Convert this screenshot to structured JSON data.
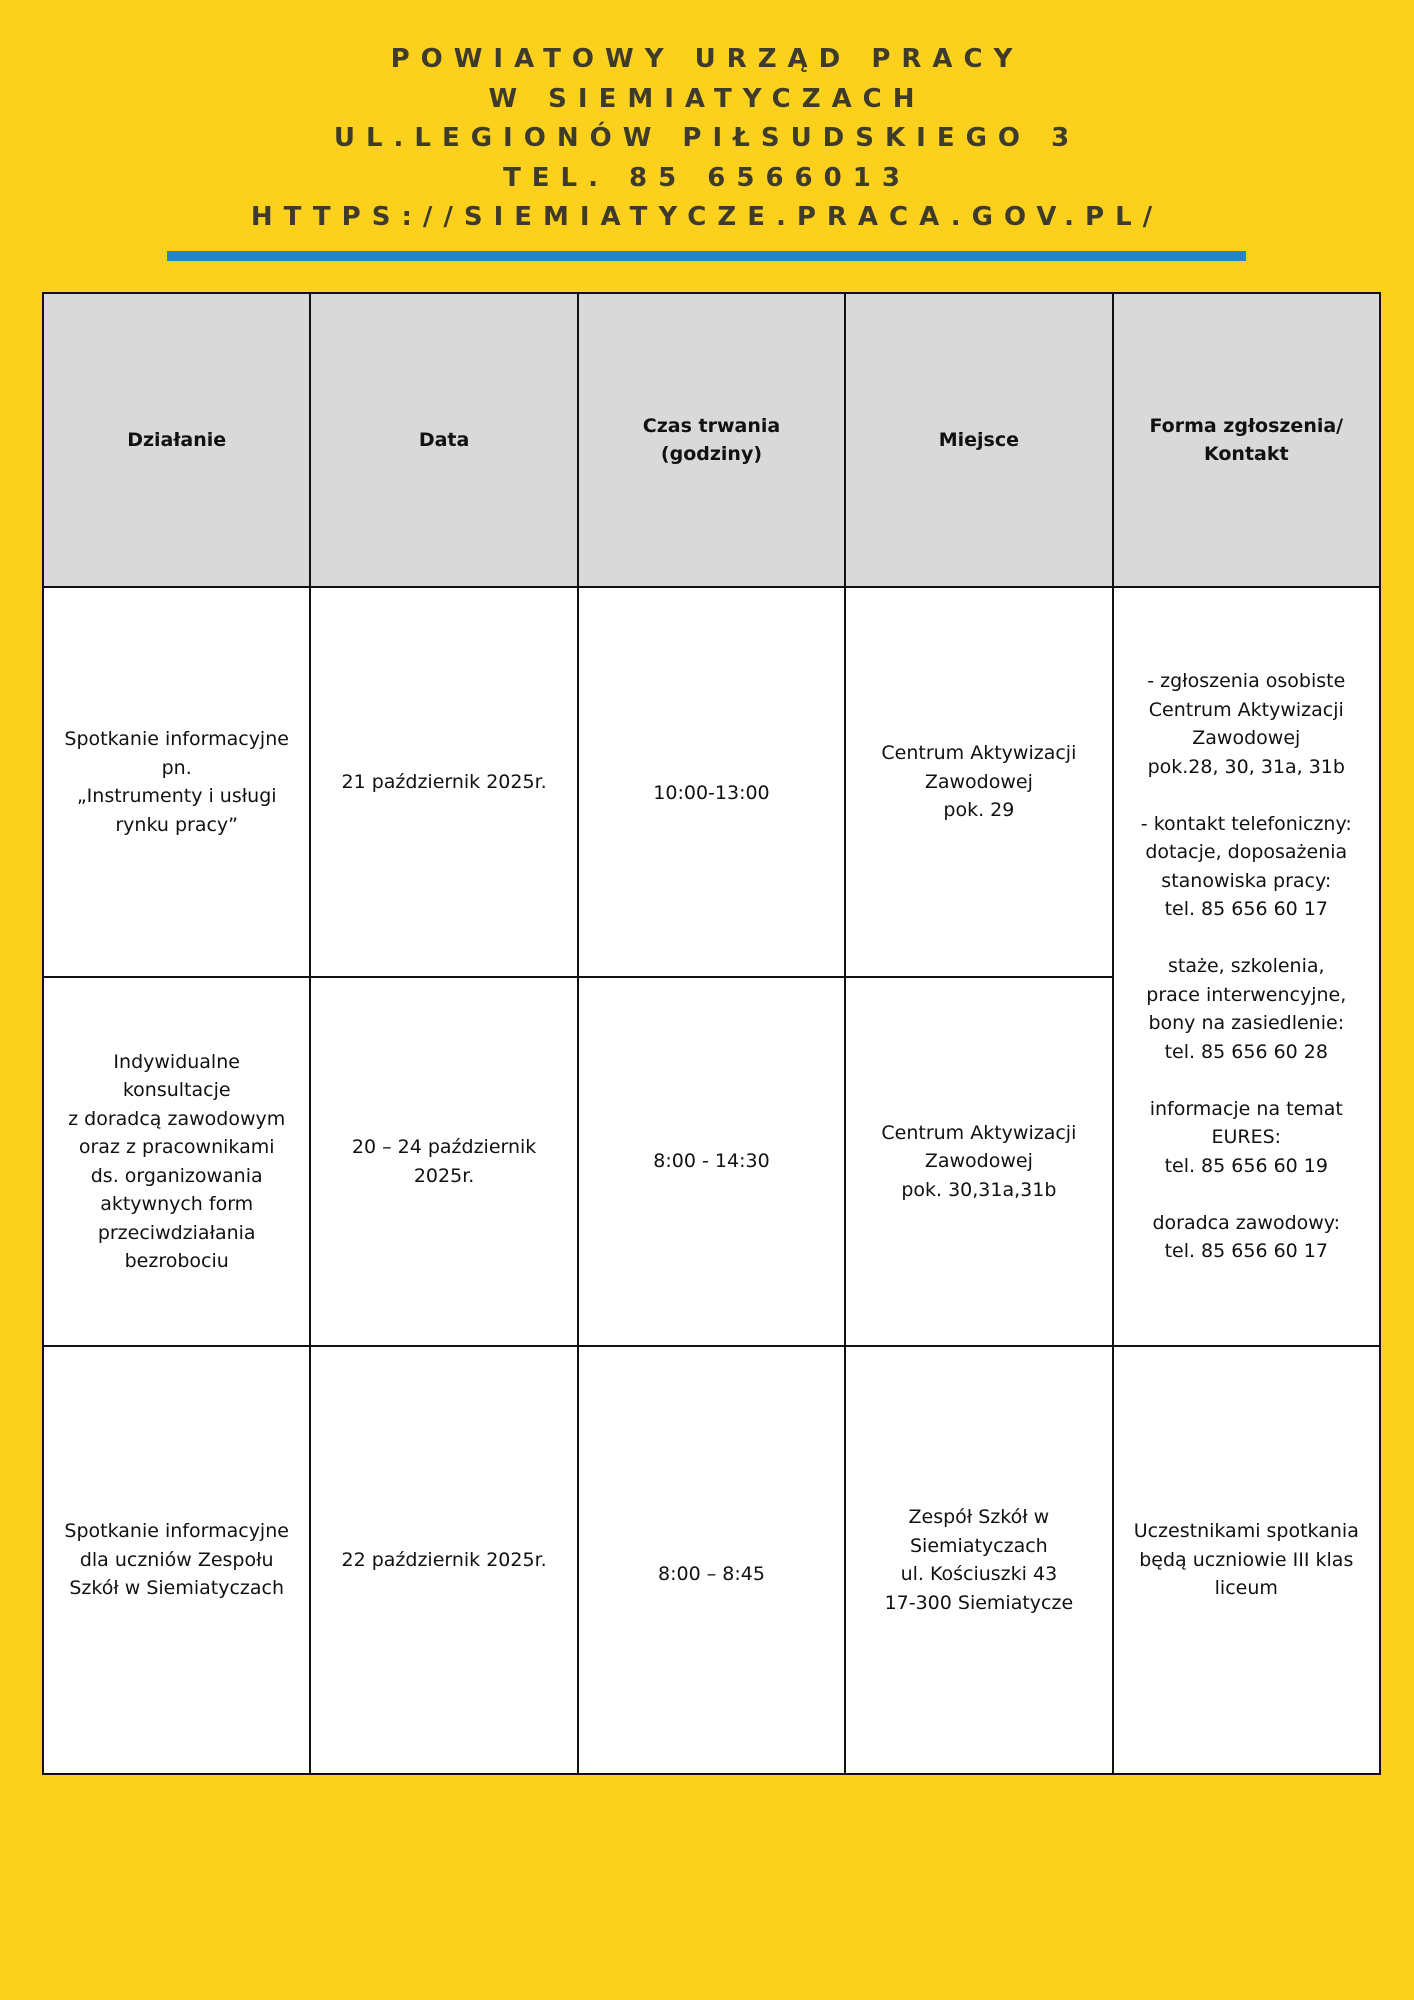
{
  "header": {
    "lines": [
      "POWIATOWY URZĄD PRACY",
      "W SIEMIATYCZACH",
      "UL.LEGIONÓW PIŁSUDSKIEGO 3",
      "TEL. 85 6566013",
      "HTTPS://SIEMIATYCZE.PRACA.GOV.PL/"
    ]
  },
  "colors": {
    "background": "#FCD11E",
    "accent_bar": "#2385C4",
    "table_header": "#D9D9D9",
    "title_text": "#3F3B2A"
  },
  "table": {
    "columns": [
      "Działanie",
      "Data",
      "Czas trwania\n(godziny)",
      "Miejsce",
      "Forma zgłoszenia/\nKontakt"
    ],
    "rows": [
      {
        "dzialanie": "Spotkanie informacyjne\npn.\n„Instrumenty i usługi\nrynku pracy”",
        "data": "21 październik 2025r.",
        "czas": "10:00-13:00",
        "miejsce": "Centrum Aktywizacji\nZawodowej\npok. 29"
      },
      {
        "dzialanie": "Indywidualne\nkonsultacje\nz doradcą zawodowym\noraz z pracownikami\nds. organizowania\naktywnych form\nprzeciwdziałania\nbezrobociu",
        "data": "20 – 24 październik\n2025r.",
        "czas": "8:00 - 14:30",
        "miejsce": "Centrum Aktywizacji\nZawodowej\npok. 30,31a,31b"
      },
      {
        "dzialanie": "Spotkanie informacyjne\ndla uczniów Zespołu\nSzkół w Siemiatyczach",
        "data": "22 październik 2025r.",
        "czas": "8:00 – 8:45",
        "miejsce": "Zespół Szkół w\nSiemiatyczach\nul. Kościuszki 43\n17-300 Siemiatycze",
        "kontakt": "Uczestnikami spotkania\nbędą uczniowie III klas\nliceum"
      }
    ],
    "shared_kontakt": "- zgłoszenia osobiste\nCentrum Aktywizacji\nZawodowej\npok.28, 30, 31a, 31b\n\n- kontakt telefoniczny:\ndotacje, doposażenia\nstanowiska pracy:\ntel. 85 656 60 17\n\nstaże, szkolenia,\nprace interwencyjne,\nbony na zasiedlenie:\ntel. 85 656 60 28\n\ninformacje na temat\nEURES:\ntel. 85 656 60 19\n\ndoradca zawodowy:\ntel. 85 656 60 17"
  }
}
